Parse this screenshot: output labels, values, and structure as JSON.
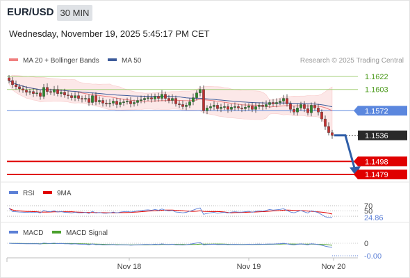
{
  "header": {
    "symbol": "EUR/USD",
    "timeframe": "30 MIN",
    "datetime": "Wednesday, November 19, 2025 5:45:17 PM CET"
  },
  "legend": {
    "ma20_label": "MA 20 + Bollinger Bands",
    "ma50_label": "MA 50",
    "copyright": "Research © 2025 Trading Central",
    "ma20_color": "#f07f7f",
    "ma50_color": "#3c5a9a"
  },
  "rsi_legend": {
    "rsi_label": "RSI",
    "ma_label": "9MA",
    "rsi_color": "#5b7fd6",
    "ma_color": "#e00000"
  },
  "macd_legend": {
    "macd_label": "MACD",
    "signal_label": "MACD Signal",
    "macd_color": "#5b7fd6",
    "signal_color": "#4aa02c"
  },
  "x_axis": {
    "labels": [
      "Nov 18",
      "Nov 19",
      "Nov 20"
    ]
  },
  "chart_data": [
    {
      "type": "candlestick",
      "title": "EUR/USD 30 MIN",
      "ylim": [
        1.1465,
        1.1645
      ],
      "levels": [
        {
          "value": 1.1622,
          "label": "1.1622",
          "kind": "resistance",
          "color": "#a5cf7a",
          "text_color": "#4a9a1a"
        },
        {
          "value": 1.1603,
          "label": "1.1603",
          "kind": "resistance",
          "color": "#a5cf7a",
          "text_color": "#4a9a1a"
        },
        {
          "value": 1.1572,
          "label": "1.1572",
          "kind": "pivot",
          "color": "#5b87de",
          "text_color": "#ffffff"
        },
        {
          "value": 1.1536,
          "label": "1.1536",
          "kind": "last_price",
          "color": "#2a2a2a",
          "text_color": "#ffffff"
        },
        {
          "value": 1.1498,
          "label": "1.1498",
          "kind": "support",
          "color": "#e00000",
          "text_color": "#ffffff"
        },
        {
          "value": 1.1479,
          "label": "1.1479",
          "kind": "support",
          "color": "#e00000",
          "text_color": "#ffffff"
        }
      ],
      "forecast_target": 1.1479,
      "closes": [
        1.1616,
        1.161,
        1.1607,
        1.1604,
        1.1602,
        1.1599,
        1.16,
        1.1597,
        1.1598,
        1.1593,
        1.1606,
        1.16,
        1.1599,
        1.1603,
        1.1597,
        1.1599,
        1.1595,
        1.1594,
        1.1591,
        1.1594,
        1.159,
        1.1589,
        1.159,
        1.1584,
        1.1594,
        1.1585,
        1.1587,
        1.1583,
        1.1582,
        1.1583,
        1.1586,
        1.1581,
        1.1584,
        1.1585,
        1.1586,
        1.1582,
        1.1584,
        1.1587,
        1.1588,
        1.159,
        1.1591,
        1.1589,
        1.1593,
        1.159,
        1.1596,
        1.159,
        1.1587,
        1.159,
        1.1582,
        1.1581,
        1.1578,
        1.158,
        1.1585,
        1.1591,
        1.1598,
        1.1603,
        1.1572,
        1.1576,
        1.1578,
        1.158,
        1.1575,
        1.1577,
        1.1578,
        1.1574,
        1.1577,
        1.1578,
        1.1576,
        1.1575,
        1.1577,
        1.1579,
        1.1574,
        1.1578,
        1.158,
        1.1578,
        1.1581,
        1.1584,
        1.1582,
        1.1584,
        1.1586,
        1.159,
        1.1582,
        1.1574,
        1.157,
        1.1576,
        1.1581,
        1.1575,
        1.1569,
        1.158,
        1.1576,
        1.157,
        1.156,
        1.1549,
        1.154,
        1.1536
      ],
      "rsi": {
        "value": 24.86,
        "levels": [
          70,
          50
        ],
        "label_value": "24.86"
      },
      "macd": {
        "zero_label": "0",
        "value": -0.0,
        "value_label": "-0.00"
      }
    }
  ]
}
